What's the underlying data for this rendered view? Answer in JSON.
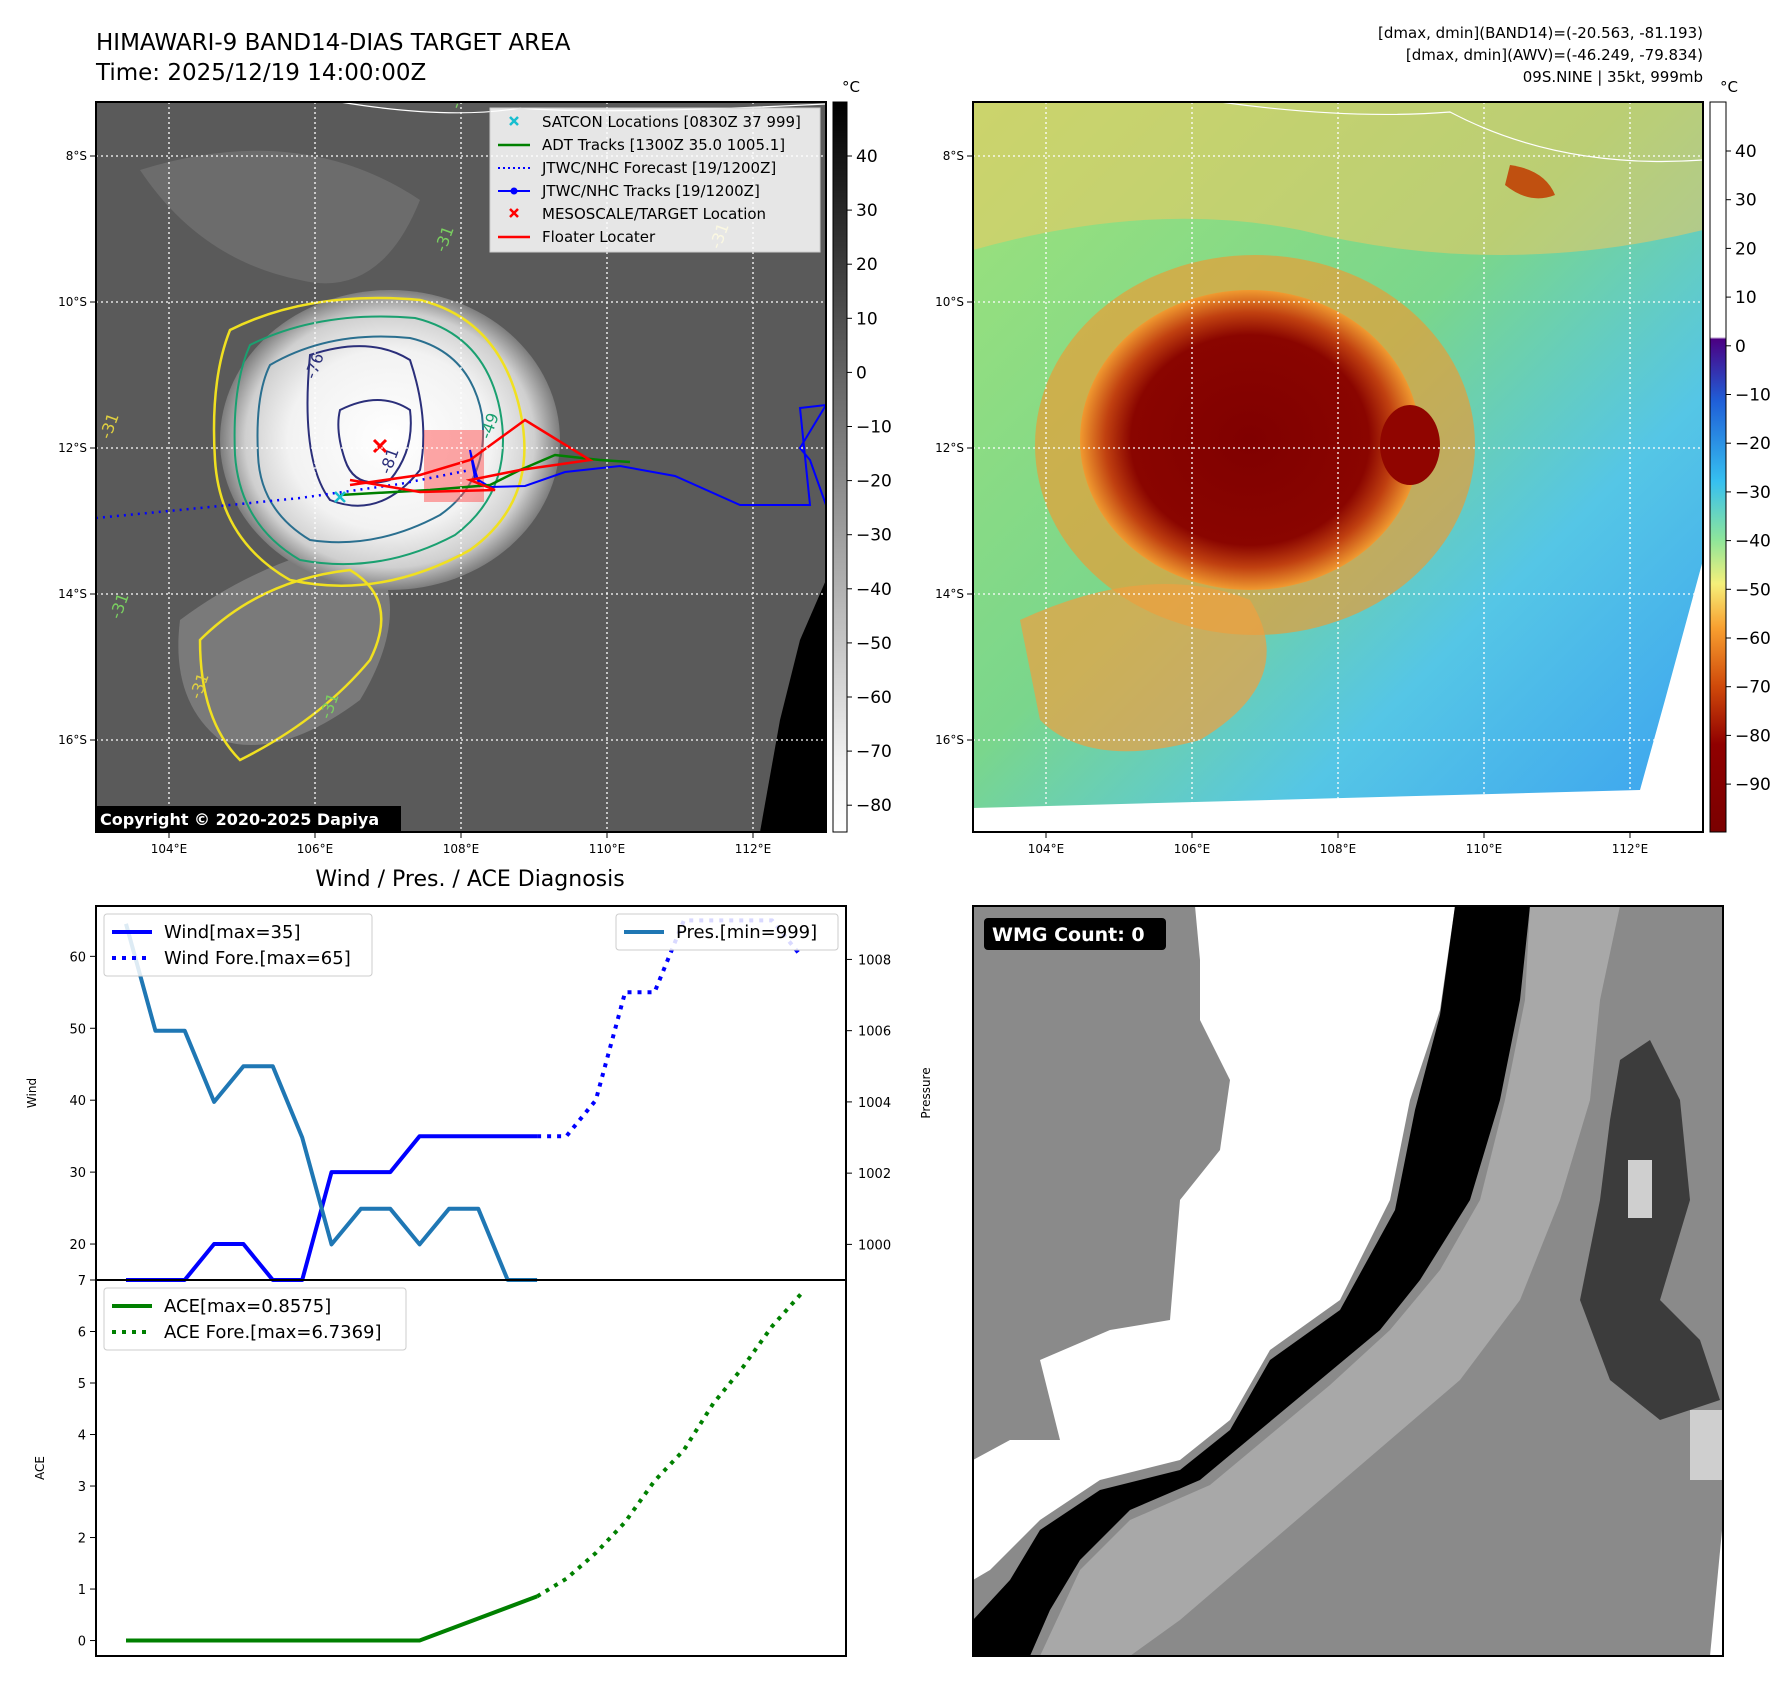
{
  "header": {
    "title": "HIMAWARI-9 BAND14-DIAS TARGET AREA",
    "time": "Time: 2025/12/19 14:00:00Z",
    "stats_band14": "[dmax, dmin](BAND14)=(-20.563, -81.193)",
    "stats_awv": "[dmax, dmin](AWV)=(-46.249, -79.834)",
    "storm": "09S.NINE | 35kt, 999mb"
  },
  "ir_panel": {
    "legend": [
      {
        "label": "SATCON Locations [0830Z 37 999]",
        "color": "#17becf",
        "marker": "x"
      },
      {
        "label": "ADT Tracks [1300Z 35.0 1005.1]",
        "color": "#008000",
        "marker": "line"
      },
      {
        "label": "JTWC/NHC Forecast [19/1200Z]",
        "color": "#0000ff",
        "marker": "dotted"
      },
      {
        "label": "JTWC/NHC Tracks [19/1200Z]",
        "color": "#0000ff",
        "marker": "line-dot"
      },
      {
        "label": "MESOSCALE/TARGET Location",
        "color": "#ff0000",
        "marker": "x"
      },
      {
        "label": "Floater Locater",
        "color": "#ff0000",
        "marker": "line"
      }
    ],
    "copyright": "Copyright © 2020-2025 Dapiya",
    "lon_ticks": [
      "104°E",
      "106°E",
      "108°E",
      "110°E",
      "112°E"
    ],
    "lat_ticks": [
      "8°S",
      "10°S",
      "12°S",
      "14°S",
      "16°S"
    ],
    "contour_labels": [
      "-31",
      "-31",
      "-31",
      "-31",
      "-31",
      "-76",
      "-81",
      "-49",
      "-31",
      "-31"
    ],
    "colorbar_unit": "°C",
    "colorbar_ticks": [
      "40",
      "30",
      "20",
      "10",
      "0",
      "−10",
      "−20",
      "−30",
      "−40",
      "−50",
      "−60",
      "−70",
      "−80"
    ]
  },
  "awv_panel": {
    "lon_ticks": [
      "104°E",
      "106°E",
      "108°E",
      "110°E",
      "112°E"
    ],
    "lat_ticks": [
      "8°S",
      "10°S",
      "12°S",
      "14°S",
      "16°S"
    ],
    "colorbar_unit": "°C",
    "colorbar_ticks": [
      "40",
      "30",
      "20",
      "10",
      "0",
      "−10",
      "−20",
      "−30",
      "−40",
      "−50",
      "−60",
      "−70",
      "−80",
      "−90"
    ]
  },
  "wmg_panel": {
    "badge": "WMG Count: 0"
  },
  "colors": {
    "wind": "#0000ff",
    "pressure": "#1f77b4",
    "ace": "#008000",
    "ir_cloud": "#ffffff",
    "awv_core": "#800000"
  },
  "chart_data": [
    {
      "type": "line",
      "title": "Wind / Pres. / ACE Diagnosis",
      "ylabel": "Wind",
      "ylabel2": "Pressure",
      "ylim": [
        15,
        67
      ],
      "y2lim": [
        999,
        1009.5
      ],
      "yticks": [
        20,
        30,
        40,
        50,
        60
      ],
      "y2ticks": [
        1000,
        1002,
        1004,
        1006,
        1008
      ],
      "series": [
        {
          "name": "Wind[max=35]",
          "axis": "left",
          "style": "solid",
          "x": [
            0,
            1,
            2,
            3,
            4,
            5,
            6,
            7,
            8,
            9,
            10,
            11,
            12,
            13,
            14
          ],
          "values": [
            15,
            15,
            15,
            20,
            20,
            15,
            15,
            30,
            30,
            30,
            35,
            35,
            35,
            35,
            35
          ]
        },
        {
          "name": "Wind Fore.[max=65]",
          "axis": "left",
          "style": "dotted",
          "x": [
            14,
            15,
            16,
            17,
            18,
            19,
            20,
            21,
            22,
            23
          ],
          "values": [
            35,
            35,
            40,
            55,
            55,
            65,
            65,
            65,
            65,
            60
          ]
        },
        {
          "name": "Pres.[min=999]",
          "axis": "right",
          "style": "solid",
          "x": [
            0,
            1,
            2,
            3,
            4,
            5,
            6,
            7,
            8,
            9,
            10,
            11,
            12,
            13,
            14
          ],
          "values": [
            1009,
            1006,
            1006,
            1004,
            1005,
            1005,
            1003,
            1000,
            1001,
            1001,
            1000,
            1001,
            1001,
            999,
            999
          ]
        }
      ]
    },
    {
      "type": "line",
      "ylabel": "ACE",
      "ylim": [
        -0.3,
        7
      ],
      "yticks": [
        0,
        1,
        2,
        3,
        4,
        5,
        6,
        7
      ],
      "series": [
        {
          "name": "ACE[max=0.8575]",
          "style": "solid",
          "x": [
            0,
            2,
            4,
            6,
            8,
            10,
            14
          ],
          "values": [
            0,
            0,
            0,
            0,
            0,
            0,
            0.8575
          ]
        },
        {
          "name": "ACE Fore.[max=6.7369]",
          "style": "dotted",
          "x": [
            14,
            15,
            16,
            17,
            18,
            19,
            20,
            21,
            22,
            23
          ],
          "values": [
            0.8575,
            1.2,
            1.7,
            2.3,
            3.1,
            3.7,
            4.6,
            5.3,
            6.1,
            6.7369
          ]
        }
      ]
    }
  ]
}
